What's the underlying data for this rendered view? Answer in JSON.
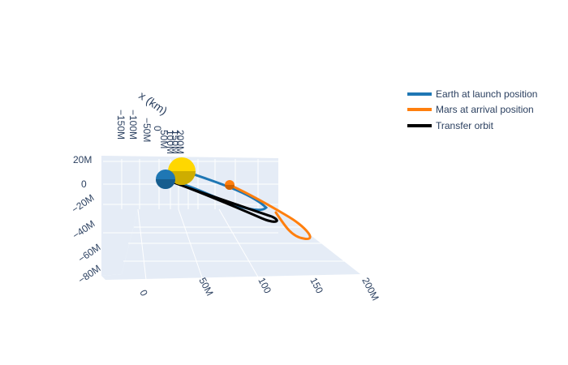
{
  "colors": {
    "scene_bg": "#e5ecf6",
    "grid": "#ffffff",
    "text": "#2a3f5f",
    "sun": "#ffd700",
    "sun_shade": "#c9a800",
    "earth": "#1f77b4",
    "mars": "#ff7f0e",
    "transfer": "#000000"
  },
  "chart_data": {
    "type": "line",
    "title": "",
    "projection": "3d",
    "axes": {
      "x": {
        "label": "x (km)",
        "ticks": [
          "−150M",
          "−100M",
          "−50M",
          "0",
          "50M",
          "100M",
          "150M",
          "200M"
        ]
      },
      "y": {
        "label": "",
        "ticks": [
          "0",
          "50M",
          "100M",
          "150M",
          "200M"
        ],
        "tick_display": [
          "0",
          "50M",
          "100",
          "150",
          "200M"
        ]
      },
      "z": {
        "label": "",
        "ticks": [
          "20M",
          "0",
          "−20M",
          "−40M",
          "−60M",
          "−80M"
        ]
      }
    },
    "series": [
      {
        "name": "Earth at launch position",
        "color": "#1f77b4",
        "line_width": 3
      },
      {
        "name": "Mars at arrival position",
        "color": "#ff7f0e",
        "line_width": 3
      },
      {
        "name": "Transfer orbit",
        "color": "#000000",
        "line_width": 3
      }
    ],
    "bodies": [
      {
        "name": "sun",
        "color": "#ffd700"
      },
      {
        "name": "earth",
        "color": "#1f77b4"
      },
      {
        "name": "mars",
        "color": "#ff7f0e"
      }
    ],
    "grid": true,
    "legend_position": "top-right"
  }
}
